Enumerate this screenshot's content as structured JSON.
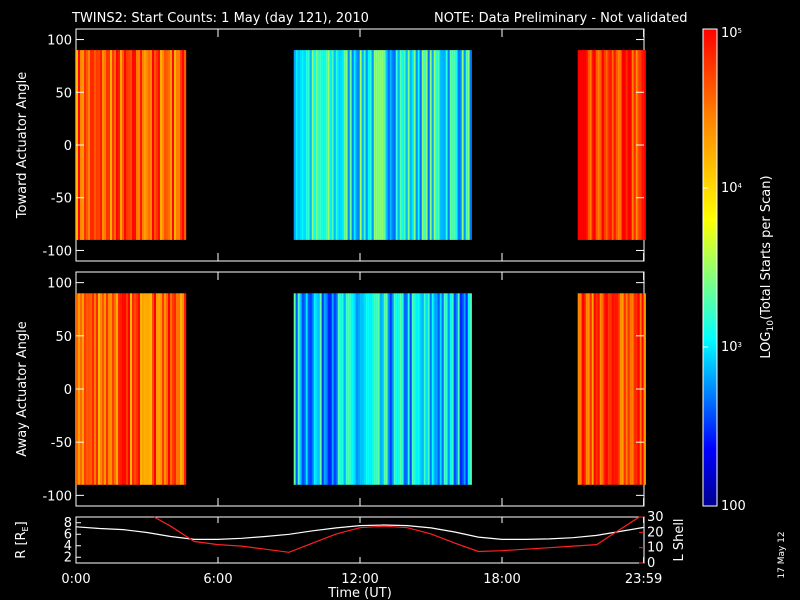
{
  "header": {
    "title": "TWINS2: Start Counts:  1 May (day 121), 2010",
    "note": "NOTE: Data Preliminary - Not validated",
    "note_color": "#ff2020"
  },
  "stamp": "17 May 12",
  "chart_data": [
    {
      "type": "heatmap",
      "panel": "toward",
      "ylabel": "Toward Actuator Angle",
      "ylim": [
        -110,
        110
      ],
      "yticks": [
        "100",
        "50",
        "0",
        "-50",
        "-100"
      ],
      "xlim_hours": [
        0,
        24
      ],
      "angle_range": [
        -90,
        90
      ],
      "data_segments_hours": [
        [
          0.0,
          4.6
        ],
        [
          9.2,
          16.7
        ],
        [
          21.2,
          23.99
        ]
      ],
      "segment_levels_log10": [
        4.6,
        3.1,
        4.7
      ]
    },
    {
      "type": "heatmap",
      "panel": "away",
      "ylabel": "Away Actuator Angle",
      "ylim": [
        -110,
        110
      ],
      "yticks": [
        "100",
        "50",
        "0",
        "-50",
        "-100"
      ],
      "xlim_hours": [
        0,
        24
      ],
      "angle_range": [
        -90,
        90
      ],
      "data_segments_hours": [
        [
          0.0,
          4.6
        ],
        [
          9.2,
          16.7
        ],
        [
          21.2,
          23.99
        ]
      ],
      "segment_levels_log10": [
        4.6,
        2.9,
        4.7
      ]
    },
    {
      "type": "line",
      "panel": "orbit",
      "ylabel_left": "R [R",
      "ylabel_left_sub": "E",
      "ylabel_left_end": "]",
      "ylabel_right": "L Shell",
      "ylim_left": [
        1,
        9
      ],
      "yticks_left": [
        "8",
        "6",
        "4",
        "2"
      ],
      "ylim_right": [
        0,
        30
      ],
      "yticks_right": [
        "30",
        "20",
        "10",
        "0"
      ],
      "xlabel": "Time (UT)",
      "xticks": [
        "0:00",
        "6:00",
        "12:00",
        "18:00",
        "23:59"
      ],
      "xtick_hours": [
        0,
        6,
        12,
        18,
        23.983
      ],
      "series": [
        {
          "color": "#ffffff",
          "x": [
            0,
            1,
            2,
            3,
            4,
            5,
            6,
            7,
            8,
            9,
            10,
            11,
            12,
            13,
            14,
            15,
            16,
            17,
            18,
            19,
            20,
            21,
            22,
            23,
            24
          ],
          "y": [
            7.3,
            7.0,
            6.8,
            6.3,
            5.6,
            5.1,
            5.1,
            5.3,
            5.6,
            6.0,
            6.6,
            7.1,
            7.5,
            7.6,
            7.5,
            7.1,
            6.4,
            5.5,
            5.1,
            5.1,
            5.2,
            5.4,
            5.8,
            6.5,
            7.2
          ]
        },
        {
          "color": "#ff2020",
          "axis": "right",
          "x": [
            3.3,
            4,
            5,
            6,
            7,
            8,
            9,
            10,
            11,
            12,
            13,
            14,
            15,
            16,
            17,
            18,
            19,
            20,
            21,
            22,
            23,
            23.8
          ],
          "y": [
            30,
            24,
            14,
            12,
            11,
            9,
            7,
            13,
            19,
            23,
            24,
            23,
            19,
            13,
            7.5,
            8,
            9,
            10,
            11,
            12,
            22,
            30
          ]
        }
      ]
    },
    {
      "type": "colorbar",
      "label_pre": "LOG",
      "label_sub": "10",
      "label_post": "(Total Starts per Scan)",
      "scale": "log",
      "range": [
        100,
        100000
      ],
      "tick_main": "10",
      "tick_values": [
        100000,
        10000,
        1000,
        100
      ],
      "tick_exps": [
        "5",
        "4",
        "3",
        ""
      ],
      "tick_labels": [
        "10",
        "10",
        "10",
        "100"
      ]
    }
  ]
}
